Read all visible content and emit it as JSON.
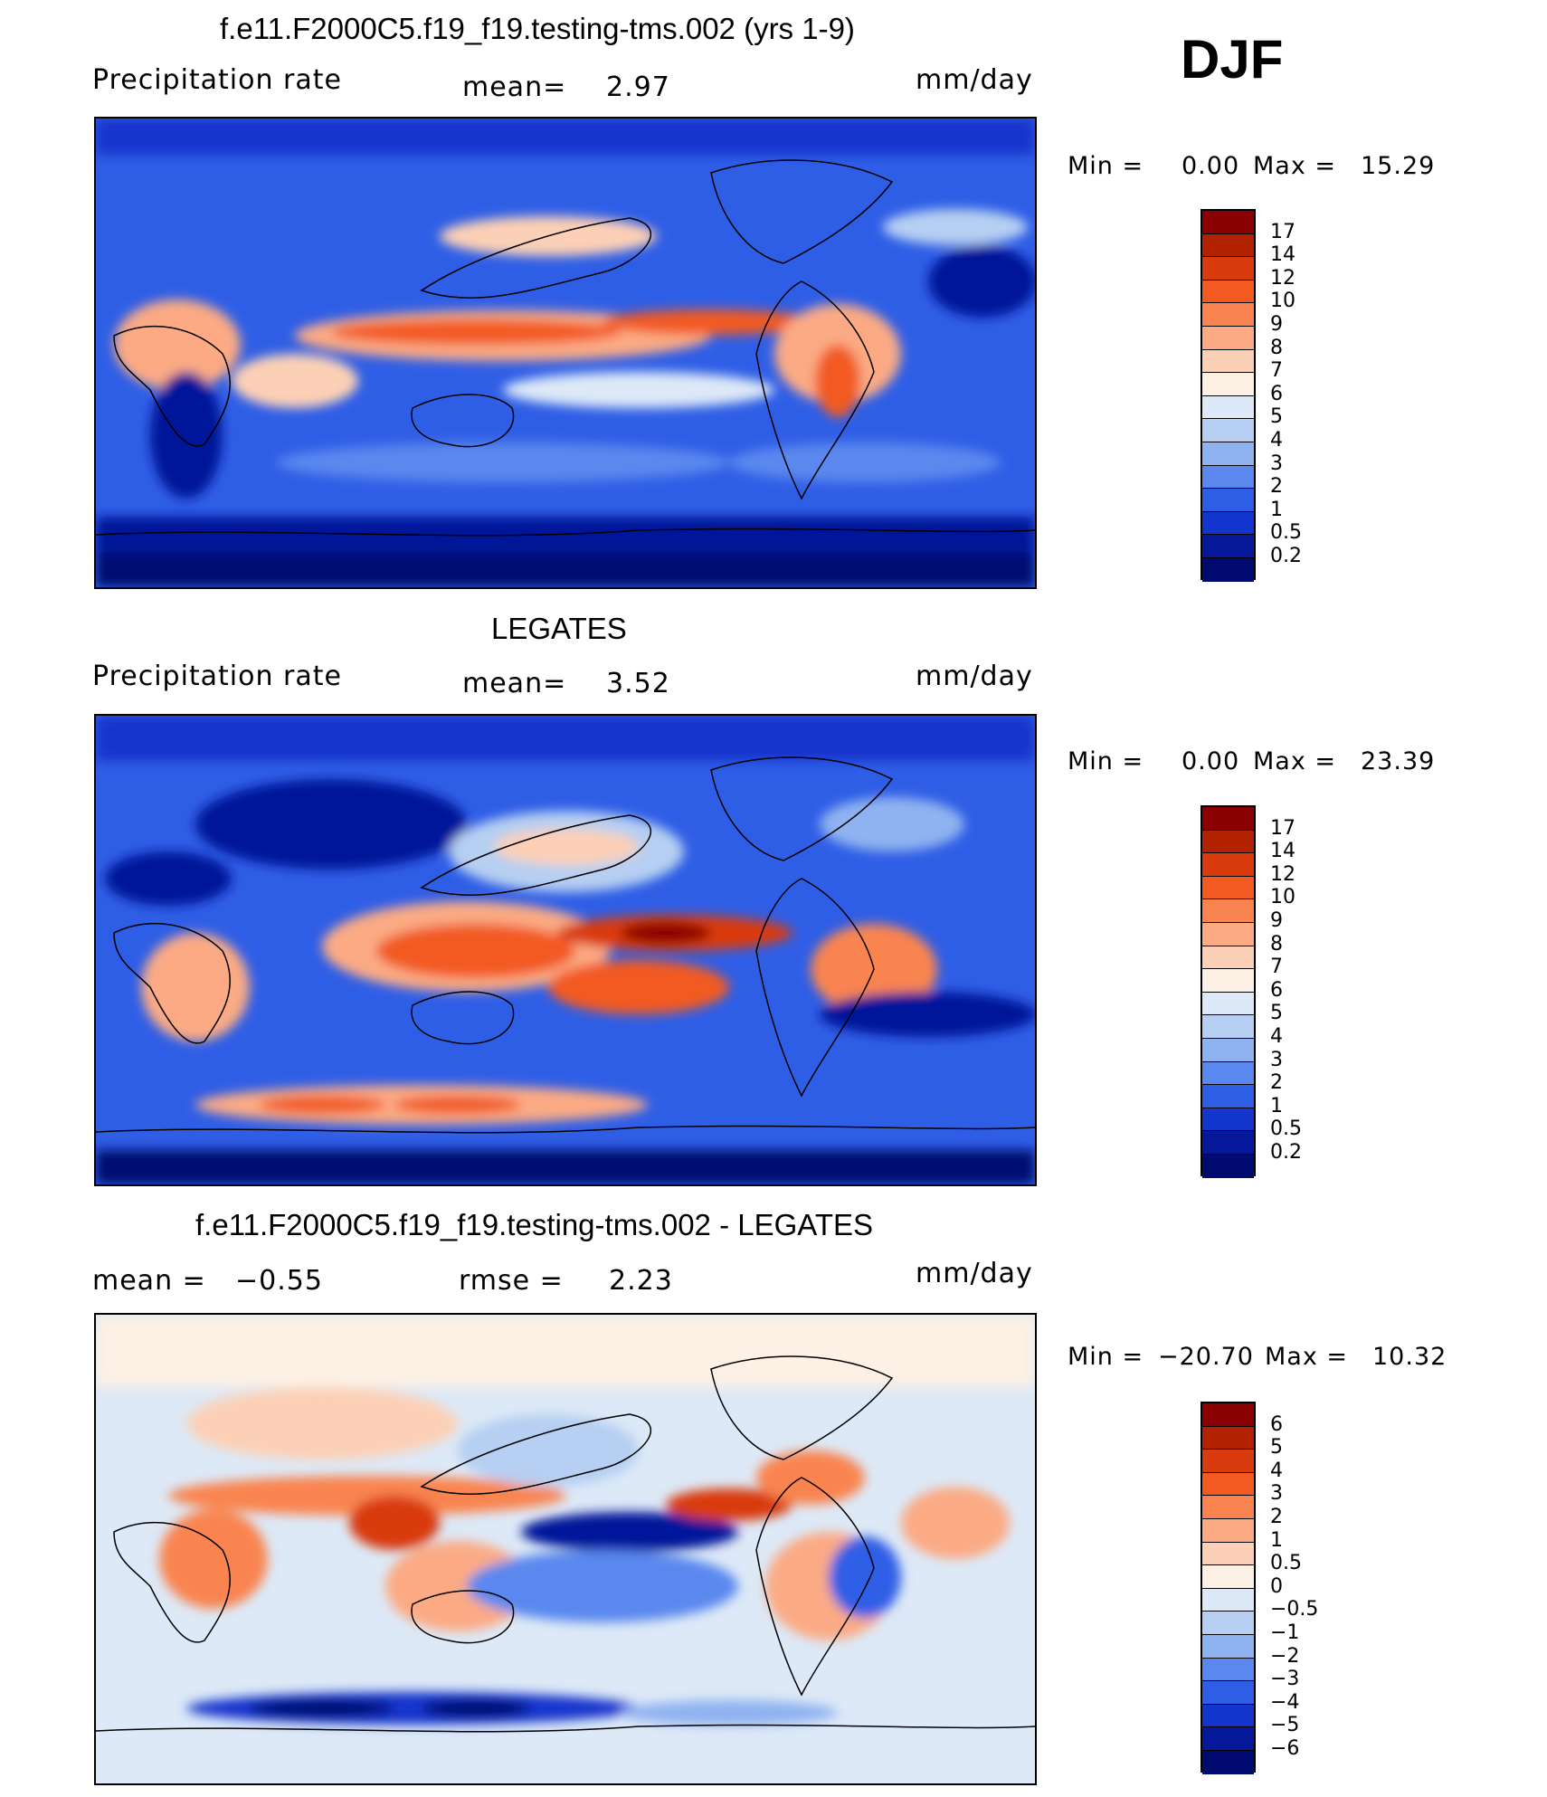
{
  "season": "DJF",
  "panels": [
    {
      "title": "f.e11.F2000C5.f19_f19.testing-tms.002 (yrs 1-9)",
      "left_label": "Precipitation  rate",
      "mid_label": "mean=",
      "mid_value": "2.97",
      "right_label": "mm/day",
      "rmse_label": "",
      "rmse_value": "",
      "min_label": "Min  =",
      "min_value": "0.00",
      "max_label": "Max  =",
      "max_value": "15.29",
      "colorbar_labels": [
        "17",
        "14",
        "12",
        "10",
        "9",
        "8",
        "7",
        "6",
        "5",
        "4",
        "3",
        "2",
        "1",
        "0.5",
        "0.2"
      ],
      "colorbar_colors": [
        "#8b0000",
        "#b22200",
        "#d93a0e",
        "#f25a22",
        "#f9844f",
        "#fbaa84",
        "#fcd0b6",
        "#fdf0e4",
        "#dde9f7",
        "#b6cff2",
        "#8fb2f0",
        "#5a88ee",
        "#2f5ee6",
        "#1334cd",
        "#06189a",
        "#000a6f"
      ]
    },
    {
      "title": "LEGATES",
      "left_label": "Precipitation  rate",
      "mid_label": "mean=",
      "mid_value": "3.52",
      "right_label": "mm/day",
      "rmse_label": "",
      "rmse_value": "",
      "min_label": "Min  =",
      "min_value": "0.00",
      "max_label": "Max  =",
      "max_value": "23.39",
      "colorbar_labels": [
        "17",
        "14",
        "12",
        "10",
        "9",
        "8",
        "7",
        "6",
        "5",
        "4",
        "3",
        "2",
        "1",
        "0.5",
        "0.2"
      ],
      "colorbar_colors": [
        "#8b0000",
        "#b22200",
        "#d93a0e",
        "#f25a22",
        "#f9844f",
        "#fbaa84",
        "#fcd0b6",
        "#fdf0e4",
        "#dde9f7",
        "#b6cff2",
        "#8fb2f0",
        "#5a88ee",
        "#2f5ee6",
        "#1334cd",
        "#06189a",
        "#000a6f"
      ]
    },
    {
      "title": "f.e11.F2000C5.f19_f19.testing-tms.002 - LEGATES",
      "left_label": "mean  =",
      "left_value": "−0.55",
      "mid_label": "rmse  =",
      "mid_value": "2.23",
      "right_label": "mm/day",
      "min_label": "Min  =",
      "min_value": "−20.70",
      "max_label": "Max  =",
      "max_value": "10.32",
      "colorbar_labels": [
        "6",
        "5",
        "4",
        "3",
        "2",
        "1",
        "0.5",
        "0",
        "−0.5",
        "−1",
        "−2",
        "−3",
        "−4",
        "−5",
        "−6"
      ],
      "colorbar_colors": [
        "#8b0000",
        "#b22200",
        "#d93a0e",
        "#f25a22",
        "#f9844f",
        "#fbaa84",
        "#fcd0b6",
        "#fdf0e4",
        "#dde9f7",
        "#b6cff2",
        "#8fb2f0",
        "#5a88ee",
        "#2f5ee6",
        "#1334cd",
        "#06189a",
        "#000a6f"
      ]
    }
  ]
}
